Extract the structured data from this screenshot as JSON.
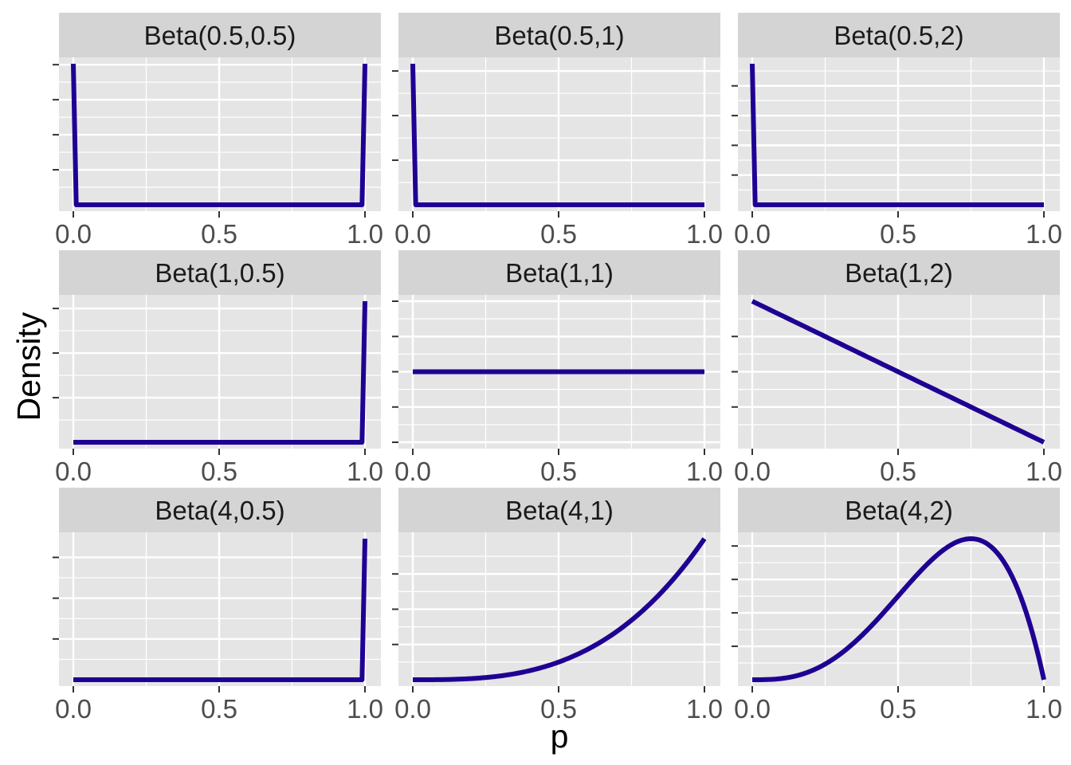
{
  "chart_data": {
    "type": "line",
    "layout": "facet_grid",
    "xlabel": "p",
    "ylabel": "Density",
    "line_color": "#1f0093",
    "panel_background": "#e5e5e5",
    "strip_background": "#d4d4d4",
    "grid": true,
    "y_tick_labels_shown": false,
    "x_tick_labels": [
      "0.0",
      "0.5",
      "1.0"
    ],
    "panels": [
      {
        "title": "Beta(0.5,0.5)",
        "alpha": 0.5,
        "beta": 0.5,
        "xlim": [
          0,
          1
        ]
      },
      {
        "title": "Beta(0.5,1)",
        "alpha": 0.5,
        "beta": 1,
        "xlim": [
          0,
          1
        ]
      },
      {
        "title": "Beta(0.5,2)",
        "alpha": 0.5,
        "beta": 2,
        "xlim": [
          0,
          1
        ]
      },
      {
        "title": "Beta(1,0.5)",
        "alpha": 1,
        "beta": 0.5,
        "xlim": [
          0,
          1
        ]
      },
      {
        "title": "Beta(1,1)",
        "alpha": 1,
        "beta": 1,
        "xlim": [
          0,
          1
        ]
      },
      {
        "title": "Beta(1,2)",
        "alpha": 1,
        "beta": 2,
        "xlim": [
          0,
          1
        ]
      },
      {
        "title": "Beta(4,0.5)",
        "alpha": 4,
        "beta": 0.5,
        "xlim": [
          0,
          1
        ]
      },
      {
        "title": "Beta(4,1)",
        "alpha": 4,
        "beta": 1,
        "xlim": [
          0,
          1
        ]
      },
      {
        "title": "Beta(4,2)",
        "alpha": 4,
        "beta": 2,
        "xlim": [
          0,
          1
        ]
      }
    ]
  }
}
